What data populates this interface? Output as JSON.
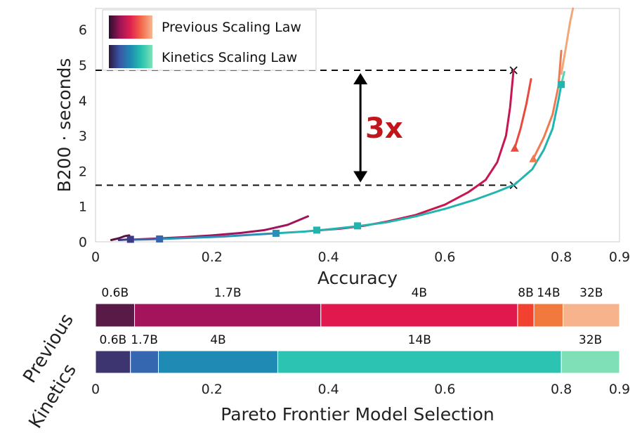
{
  "colors": {
    "previous_gradient": [
      "#2a0f2e",
      "#9b1456",
      "#e02050",
      "#f46a4a",
      "#f5b792"
    ],
    "kinetics_gradient": [
      "#2c1a3e",
      "#3a56a8",
      "#1f8ab0",
      "#28c2b0",
      "#7ee2b8"
    ],
    "reference_line": "#111111",
    "annotation": "#c0171d",
    "arrow": "#000000"
  },
  "chart_data": [
    {
      "type": "line",
      "xlabel": "Accuracy",
      "ylabel": "B200 · seconds",
      "xlim": [
        0,
        0.9
      ],
      "ylim": [
        0,
        6.6
      ],
      "xticks": [
        "0",
        "0.2",
        "0.4",
        "0.6",
        "0.8",
        "0.9"
      ],
      "yticks": [
        "0",
        "1",
        "2",
        "3",
        "4",
        "5",
        "6"
      ],
      "legend_position": "top-left",
      "legend": [
        "Previous Scaling Law",
        "Kinetics Scaling Law"
      ],
      "series": [
        {
          "name": "Previous Scaling Law",
          "segments": [
            {
              "model": "0.6B",
              "color": "#5a1340",
              "points": [
                [
                  0.027,
                  0.05
                ],
                [
                  0.04,
                  0.1
                ],
                [
                  0.05,
                  0.16
                ],
                [
                  0.058,
                  0.18
                ]
              ]
            },
            {
              "model": "1.7B",
              "color": "#a0155a",
              "points": [
                [
                  0.06,
                  0.06
                ],
                [
                  0.1,
                  0.09
                ],
                [
                  0.15,
                  0.13
                ],
                [
                  0.2,
                  0.18
                ],
                [
                  0.25,
                  0.25
                ],
                [
                  0.29,
                  0.33
                ],
                [
                  0.33,
                  0.48
                ],
                [
                  0.365,
                  0.72
                ]
              ]
            },
            {
              "model": "4B",
              "color": "#c8174f",
              "points": [
                [
                  0.38,
                  0.32
                ],
                [
                  0.42,
                  0.37
                ],
                [
                  0.46,
                  0.45
                ],
                [
                  0.5,
                  0.57
                ],
                [
                  0.55,
                  0.76
                ],
                [
                  0.6,
                  1.05
                ],
                [
                  0.64,
                  1.4
                ],
                [
                  0.67,
                  1.75
                ],
                [
                  0.69,
                  2.25
                ],
                [
                  0.705,
                  3.0
                ],
                [
                  0.712,
                  3.8
                ],
                [
                  0.718,
                  4.85
                ]
              ]
            },
            {
              "model": "8B",
              "color": "#e84a3e",
              "points": [
                [
                  0.72,
                  2.65
                ],
                [
                  0.73,
                  3.2
                ],
                [
                  0.74,
                  3.9
                ],
                [
                  0.748,
                  4.6
                ]
              ],
              "end_marker": "triangle"
            },
            {
              "model": "14B",
              "color": "#ef7a52",
              "points": [
                [
                  0.752,
                  2.35
                ],
                [
                  0.77,
                  2.95
                ],
                [
                  0.785,
                  3.6
                ],
                [
                  0.795,
                  4.4
                ],
                [
                  0.8,
                  5.4
                ]
              ],
              "end_marker": "triangle"
            },
            {
              "model": "32B",
              "color": "#f0a77a",
              "points": [
                [
                  0.8,
                  4.75
                ],
                [
                  0.808,
                  5.5
                ],
                [
                  0.815,
                  6.2
                ],
                [
                  0.82,
                  6.6
                ]
              ]
            }
          ]
        },
        {
          "name": "Kinetics Scaling Law",
          "segments": [
            {
              "model": "0.6B",
              "color": "#3b3a86",
              "points": [
                [
                  0.04,
                  0.05
                ],
                [
                  0.06,
                  0.07
                ]
              ]
            },
            {
              "model": "1.7B",
              "color": "#3566b0",
              "points": [
                [
                  0.06,
                  0.06
                ],
                [
                  0.09,
                  0.07
                ],
                [
                  0.11,
                  0.08
                ]
              ]
            },
            {
              "model": "4B",
              "color": "#2b8fb7",
              "points": [
                [
                  0.11,
                  0.08
                ],
                [
                  0.16,
                  0.11
                ],
                [
                  0.22,
                  0.15
                ],
                [
                  0.27,
                  0.2
                ],
                [
                  0.31,
                  0.24
                ]
              ]
            },
            {
              "model": "14B",
              "color": "#22b5b0",
              "points": [
                [
                  0.31,
                  0.24
                ],
                [
                  0.36,
                  0.29
                ],
                [
                  0.4,
                  0.35
                ],
                [
                  0.45,
                  0.44
                ],
                [
                  0.5,
                  0.55
                ],
                [
                  0.55,
                  0.72
                ],
                [
                  0.6,
                  0.93
                ],
                [
                  0.65,
                  1.18
                ],
                [
                  0.69,
                  1.42
                ],
                [
                  0.72,
                  1.62
                ],
                [
                  0.75,
                  2.05
                ],
                [
                  0.77,
                  2.6
                ],
                [
                  0.785,
                  3.2
                ],
                [
                  0.795,
                  4.0
                ],
                [
                  0.8,
                  4.45
                ]
              ]
            },
            {
              "model": "32B",
              "color": "#55d3b4",
              "points": [
                [
                  0.8,
                  4.45
                ],
                [
                  0.805,
                  4.8
                ]
              ]
            }
          ],
          "square_markers": [
            [
              0.06,
              0.07
            ],
            [
              0.11,
              0.08
            ],
            [
              0.31,
              0.24
            ],
            [
              0.38,
              0.33
            ],
            [
              0.45,
              0.45
            ],
            [
              0.8,
              4.45
            ]
          ]
        }
      ],
      "reference_lines": [
        {
          "y": 4.85,
          "x_end": 0.718,
          "marker": "x"
        },
        {
          "y": 1.6,
          "x_end": 0.718,
          "marker": "x"
        }
      ],
      "annotations": [
        {
          "text": "3x",
          "arrow_x": 0.455,
          "y_from": 1.6,
          "y_to": 4.85
        }
      ]
    },
    {
      "type": "bar",
      "orientation": "horizontal-stacked",
      "xlabel": "Pareto Frontier Model Selection",
      "xlim": [
        0,
        0.9
      ],
      "xticks": [
        "0",
        "0.2",
        "0.4",
        "0.6",
        "0.8",
        "0.9"
      ],
      "rows": [
        {
          "name": "Previous",
          "segments": [
            {
              "label": "0.6B",
              "start": 0.0,
              "end": 0.067,
              "color": "#5a1a48"
            },
            {
              "label": "1.7B",
              "start": 0.067,
              "end": 0.387,
              "color": "#a4145c"
            },
            {
              "label": "4B",
              "start": 0.387,
              "end": 0.725,
              "color": "#e0184e"
            },
            {
              "label": "8B",
              "start": 0.725,
              "end": 0.753,
              "color": "#f2412e"
            },
            {
              "label": "14B",
              "start": 0.753,
              "end": 0.803,
              "color": "#f2793e"
            },
            {
              "label": "32B",
              "start": 0.803,
              "end": 0.9,
              "color": "#f6b38c"
            }
          ]
        },
        {
          "name": "Kinetics",
          "segments": [
            {
              "label": "0.6B",
              "start": 0.0,
              "end": 0.06,
              "color": "#3d3570"
            },
            {
              "label": "1.7B",
              "start": 0.06,
              "end": 0.108,
              "color": "#3566b0"
            },
            {
              "label": "4B",
              "start": 0.108,
              "end": 0.313,
              "color": "#1f8ab4"
            },
            {
              "label": "14B",
              "start": 0.313,
              "end": 0.8,
              "color": "#2cc3b2"
            },
            {
              "label": "32B",
              "start": 0.8,
              "end": 0.9,
              "color": "#7fe0b8"
            }
          ]
        }
      ]
    }
  ]
}
